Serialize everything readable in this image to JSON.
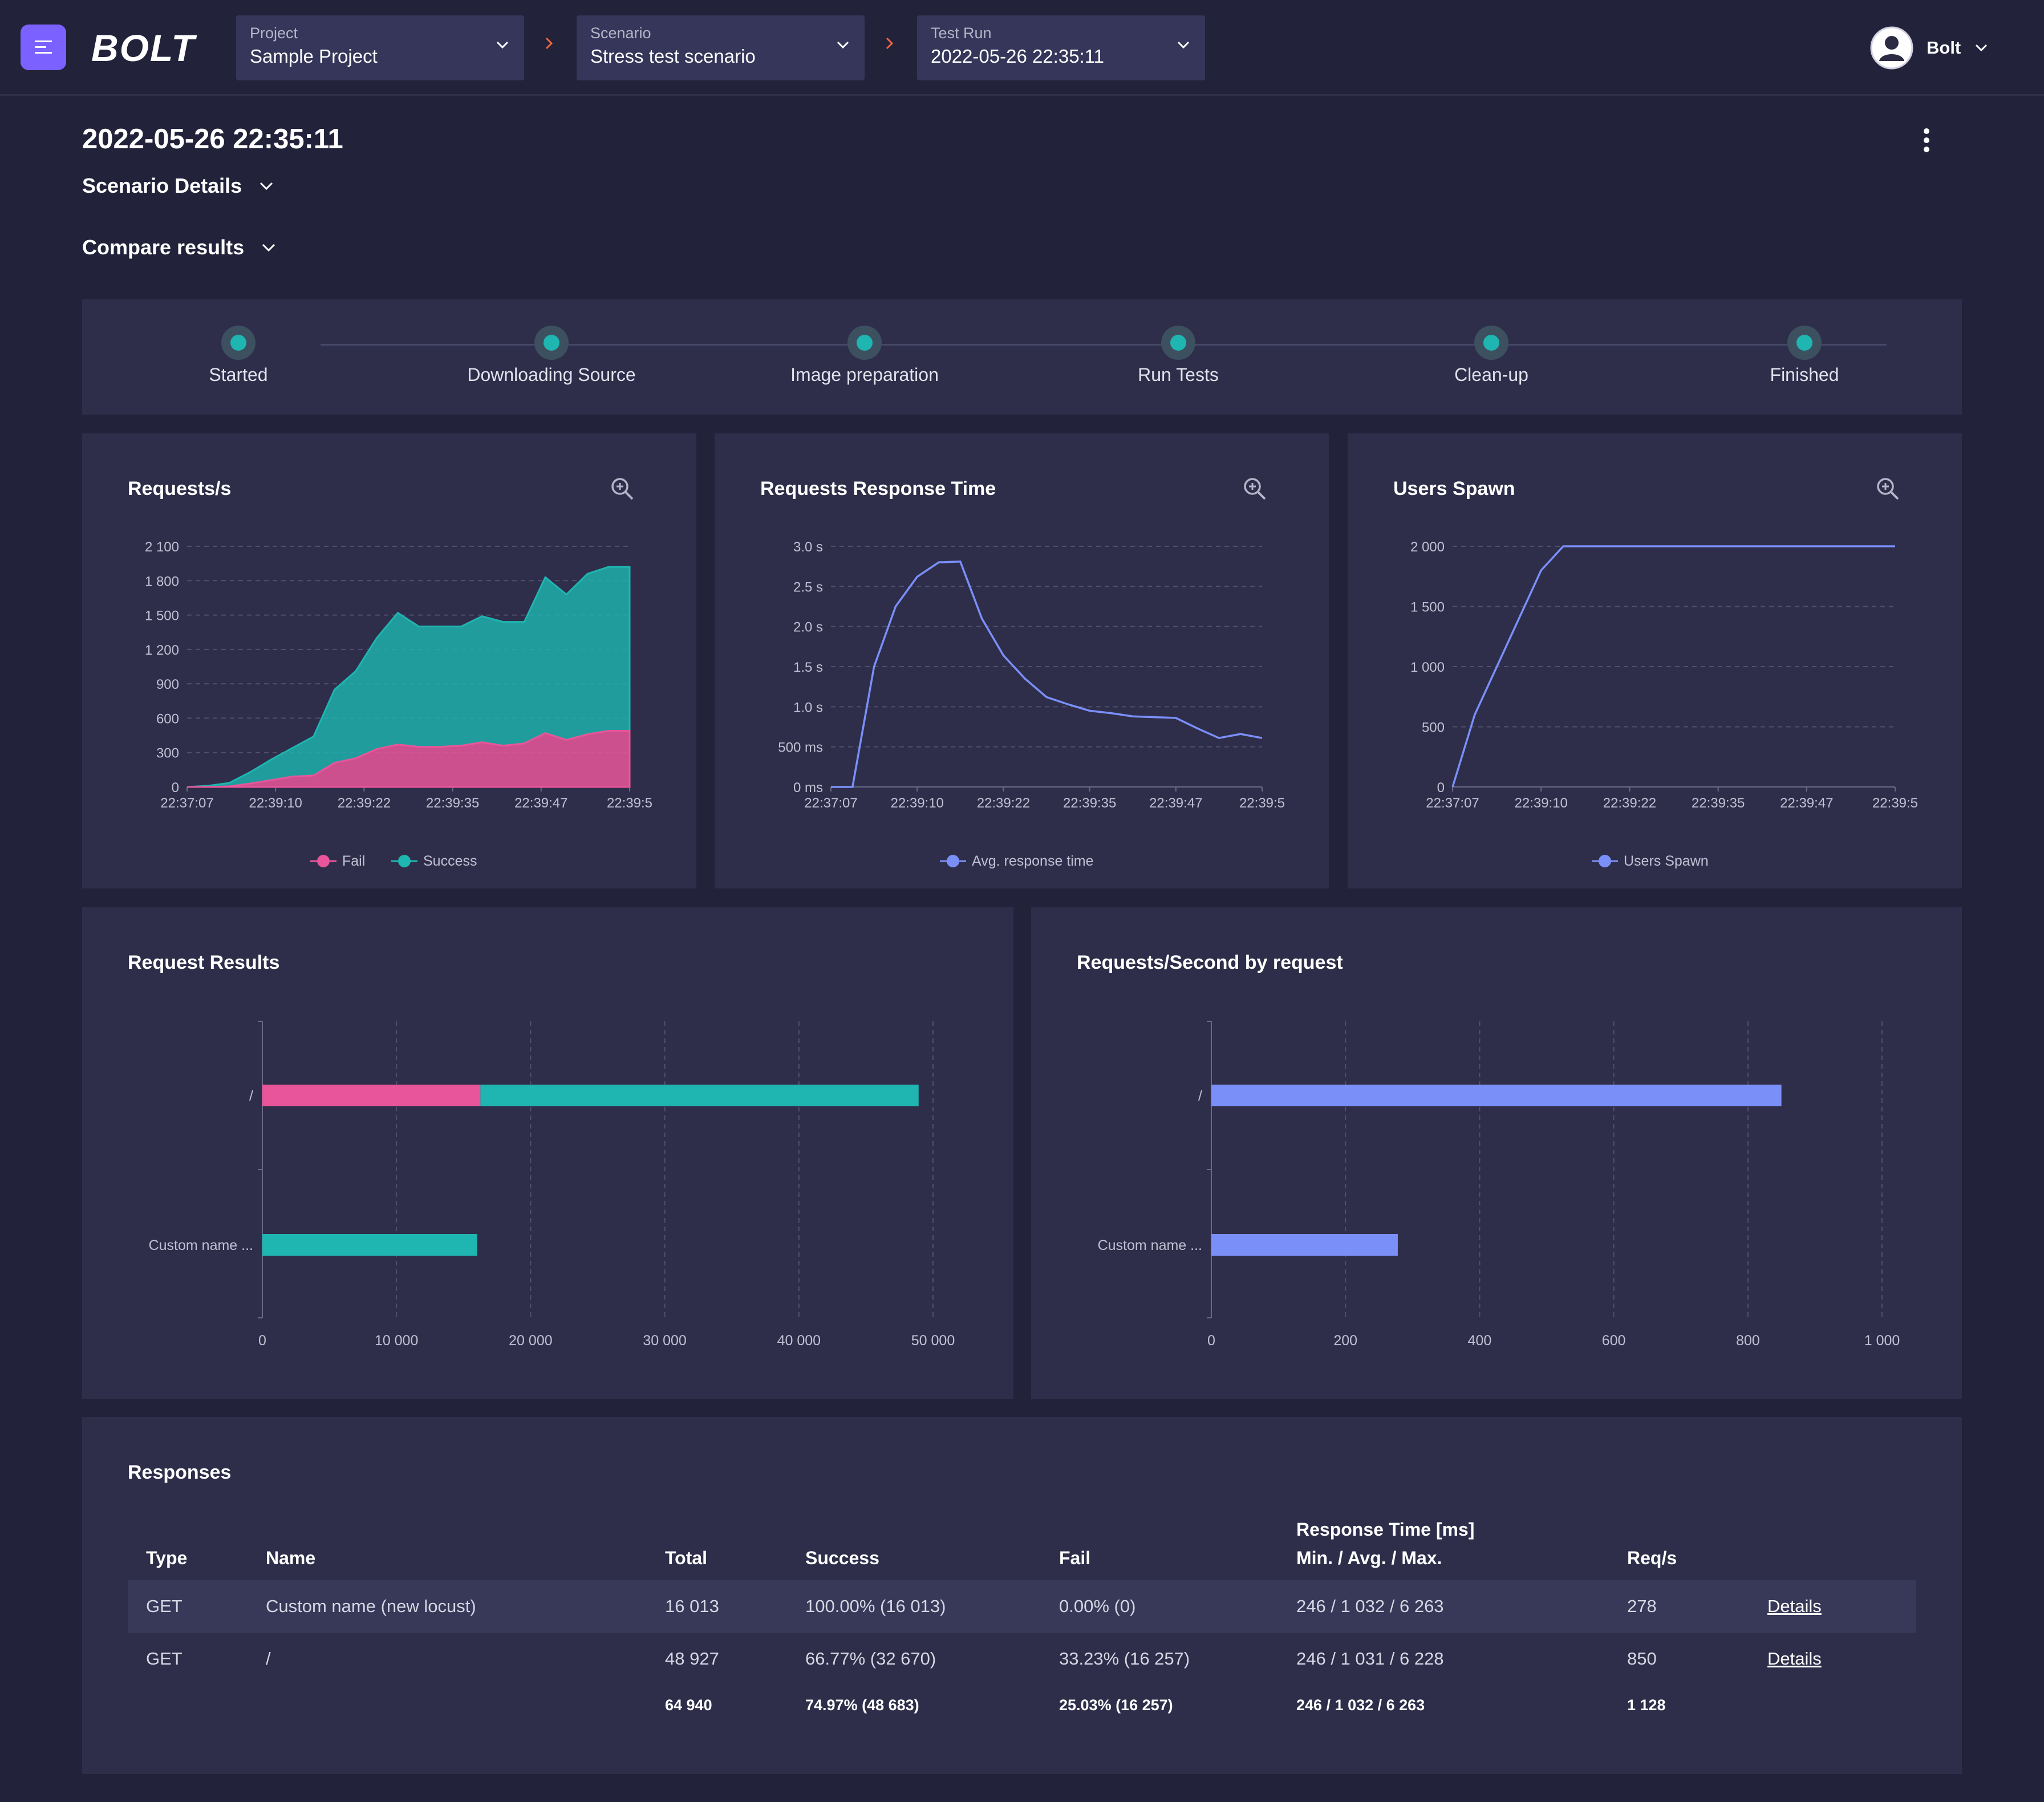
{
  "app": {
    "logo": "BOLT"
  },
  "breadcrumbs": [
    {
      "label": "Project",
      "value": "Sample Project"
    },
    {
      "label": "Scenario",
      "value": "Stress test scenario"
    },
    {
      "label": "Test Run",
      "value": "2022-05-26 22:35:11"
    }
  ],
  "user": {
    "name": "Bolt"
  },
  "page": {
    "title": "2022-05-26 22:35:11",
    "scenario_details": "Scenario Details",
    "compare_results": "Compare results"
  },
  "steps": [
    "Started",
    "Downloading Source",
    "Image preparation",
    "Run Tests",
    "Clean-up",
    "Finished"
  ],
  "colors": {
    "fail": "#e8559a",
    "success": "#1fb5b0",
    "accent": "#7b8ff9",
    "brand": "#7b61ff"
  },
  "chart_data": [
    {
      "id": "requests_per_second",
      "type": "area",
      "title": "Requests/s",
      "x_ticks": [
        "22:37:07",
        "22:39:10",
        "22:39:22",
        "22:39:35",
        "22:39:47",
        "22:39:5"
      ],
      "y_ticks": [
        "0",
        "300",
        "600",
        "900",
        "1 200",
        "1 500",
        "1 800",
        "2 100"
      ],
      "ylim": [
        0,
        2100
      ],
      "n_points": 22,
      "series": [
        {
          "name": "Fail",
          "values": [
            0,
            0,
            5,
            30,
            60,
            90,
            100,
            210,
            250,
            330,
            370,
            350,
            350,
            360,
            390,
            360,
            380,
            470,
            410,
            460,
            490,
            490
          ]
        },
        {
          "name": "Success",
          "values": [
            0,
            10,
            30,
            100,
            180,
            250,
            340,
            640,
            760,
            970,
            1150,
            1050,
            1050,
            1040,
            1100,
            1080,
            1060,
            1360,
            1270,
            1400,
            1430,
            1430
          ]
        }
      ],
      "legend": "bottom"
    },
    {
      "id": "response_time",
      "type": "line",
      "title": "Requests Response Time",
      "x_ticks": [
        "22:37:07",
        "22:39:10",
        "22:39:22",
        "22:39:35",
        "22:39:47",
        "22:39:5"
      ],
      "y_ticks": [
        "0 ms",
        "500 ms",
        "1.0 s",
        "1.5 s",
        "2.0 s",
        "2.5 s",
        "3.0 s"
      ],
      "ylim": [
        0,
        3000
      ],
      "n_points": 21,
      "series": [
        {
          "name": "Avg. response time",
          "values": [
            0,
            0,
            1500,
            2250,
            2620,
            2800,
            2810,
            2100,
            1640,
            1350,
            1120,
            1030,
            950,
            920,
            880,
            870,
            860,
            730,
            610,
            660,
            610
          ]
        }
      ],
      "legend": "bottom"
    },
    {
      "id": "users_spawn",
      "type": "line",
      "title": "Users Spawn",
      "x_ticks": [
        "22:37:07",
        "22:39:10",
        "22:39:22",
        "22:39:35",
        "22:39:47",
        "22:39:5"
      ],
      "y_ticks": [
        "0",
        "500",
        "1 000",
        "1 500",
        "2 000"
      ],
      "ylim": [
        0,
        2000
      ],
      "n_points": 21,
      "series": [
        {
          "name": "Users Spawn",
          "values": [
            0,
            600,
            1000,
            1400,
            1800,
            2000,
            2000,
            2000,
            2000,
            2000,
            2000,
            2000,
            2000,
            2000,
            2000,
            2000,
            2000,
            2000,
            2000,
            2000,
            2000
          ]
        }
      ],
      "legend": "bottom"
    },
    {
      "id": "request_results",
      "type": "bar",
      "orientation": "horizontal",
      "stacked": true,
      "title": "Request Results",
      "categories": [
        "/",
        "Custom name ..."
      ],
      "series": [
        {
          "name": "Fail",
          "values": [
            16257,
            0
          ]
        },
        {
          "name": "Success",
          "values": [
            32670,
            16013
          ]
        }
      ],
      "x_ticks": [
        "0",
        "10 000",
        "20 000",
        "30 000",
        "40 000",
        "50 000"
      ],
      "xlim": [
        0,
        50000
      ]
    },
    {
      "id": "rps_by_request",
      "type": "bar",
      "orientation": "horizontal",
      "title": "Requests/Second by request",
      "categories": [
        "/",
        "Custom name ..."
      ],
      "values": [
        850,
        278
      ],
      "x_ticks": [
        "0",
        "200",
        "400",
        "600",
        "800",
        "1 000"
      ],
      "xlim": [
        0,
        1000
      ]
    }
  ],
  "responses": {
    "title": "Responses",
    "headers": {
      "type": "Type",
      "name": "Name",
      "total": "Total",
      "success": "Success",
      "fail": "Fail",
      "rt_line1": "Response Time [ms]",
      "rt_line2": "Min. / Avg. / Max.",
      "rps": "Req/s"
    },
    "rows": [
      {
        "type": "GET",
        "name": "Custom name (new locust)",
        "total": "16 013",
        "success": "100.00% (16 013)",
        "fail": "0.00% (0)",
        "rt": "246 / 1 032 / 6 263",
        "rps": "278",
        "link": "Details"
      },
      {
        "type": "GET",
        "name": "/",
        "total": "48 927",
        "success": "66.77% (32 670)",
        "fail": "33.23% (16 257)",
        "rt": "246 / 1 031 / 6 228",
        "rps": "850",
        "link": "Details"
      }
    ],
    "totals": {
      "total": "64 940",
      "success": "74.97% (48 683)",
      "fail": "25.03% (16 257)",
      "rt": "246 / 1 032 / 6 263",
      "rps": "1 128"
    }
  }
}
